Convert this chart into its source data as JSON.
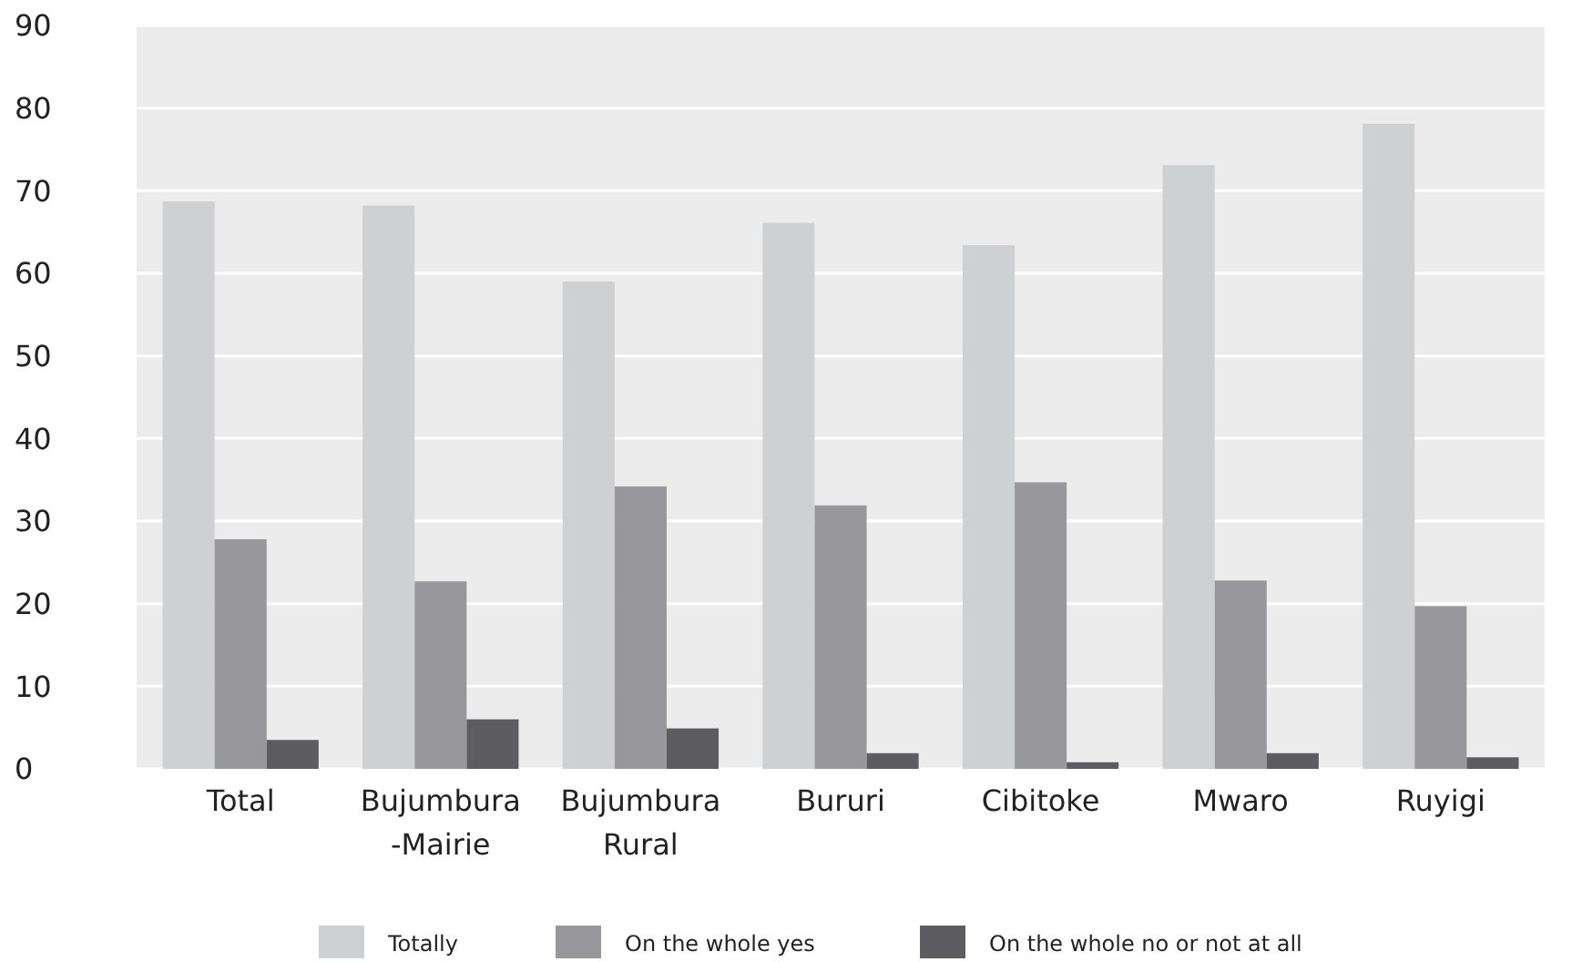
{
  "chart_data": {
    "type": "bar",
    "categories": [
      "Total",
      "Bujumbura\n-Mairie",
      "Bujumbura\nRural",
      "Bururi",
      "Cibitoke",
      "Mwaro",
      "Ruyigi"
    ],
    "series": [
      {
        "name": "Totally",
        "color": "#cfd0d2",
        "values": [
          68.7,
          68.2,
          59.0,
          66.1,
          63.4,
          73.1,
          78.1
        ]
      },
      {
        "name": "On the whole yes",
        "color": "#98979b",
        "values": [
          27.8,
          22.7,
          34.2,
          31.9,
          34.7,
          22.8,
          19.7
        ]
      },
      {
        "name": "On the whole no or not at all",
        "color": "#5d5c61",
        "values": [
          3.5,
          6.0,
          4.9,
          1.9,
          0.8,
          1.9,
          1.4
        ]
      }
    ],
    "ylim": [
      0,
      90
    ],
    "yticks": [
      0,
      10,
      20,
      30,
      40,
      50,
      60,
      70,
      80,
      90
    ],
    "grid": "y",
    "legend": "bottom"
  }
}
